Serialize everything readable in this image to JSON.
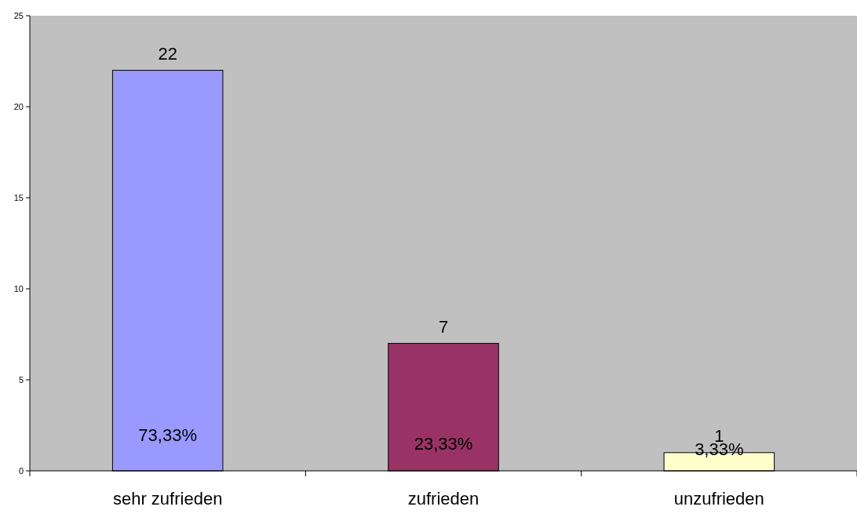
{
  "chart_data": {
    "type": "bar",
    "categories": [
      "sehr zufrieden",
      "zufrieden",
      "unzufrieden"
    ],
    "values": [
      22,
      7,
      1
    ],
    "colors": [
      "#9999ff",
      "#993366",
      "#ffffcc"
    ],
    "ylim": [
      0,
      25
    ],
    "yticks": [
      0,
      5,
      10,
      15,
      20,
      25
    ],
    "grid": false,
    "data_labels": true,
    "annotations": [
      "73,33%",
      "23,33%",
      "3,33%"
    ]
  }
}
